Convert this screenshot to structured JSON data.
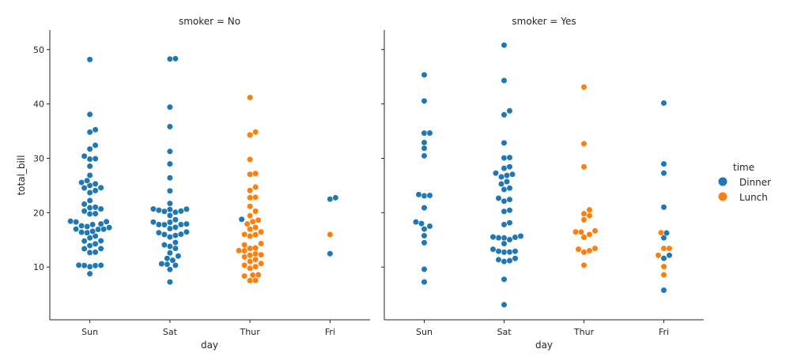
{
  "chart_data": {
    "type": "scatter",
    "subtype": "swarm",
    "ylabel": "total_bill",
    "xlabel": "day",
    "categories": [
      "Sun",
      "Sat",
      "Thur",
      "Fri"
    ],
    "ylim": [
      0.3,
      53.6
    ],
    "yticks": [
      10,
      20,
      30,
      40,
      50
    ],
    "legend": {
      "title": "time",
      "placement": "right",
      "entries": [
        "Dinner",
        "Lunch"
      ]
    },
    "colors": {
      "Dinner": "#1f77b4",
      "Lunch": "#ff7f0e"
    },
    "panels": [
      {
        "title": "smoker = No",
        "points": {
          "Dinner": {
            "Sun": [
              48.17,
              38.07,
              35.26,
              34.81,
              32.4,
              31.71,
              30.4,
              29.93,
              29.85,
              28.55,
              26.88,
              25.89,
              25.56,
              25.29,
              25.0,
              24.59,
              24.55,
              24.06,
              23.68,
              22.23,
              21.58,
              21.01,
              20.9,
              20.69,
              20.29,
              19.82,
              19.77,
              18.43,
              18.35,
              18.29,
              17.92,
              17.81,
              17.59,
              17.46,
              17.26,
              16.99,
              16.97,
              16.93,
              16.58,
              16.4,
              16.31,
              15.69,
              15.36,
              14.83,
              14.78,
              14.26,
              13.94,
              13.37,
              13.39,
              12.66,
              12.74,
              10.33,
              10.34,
              10.29,
              10.27,
              10.07,
              8.77
            ],
            "Sat": [
              48.33,
              48.27,
              39.42,
              35.83,
              31.27,
              28.97,
              26.41,
              24.01,
              21.7,
              20.69,
              20.65,
              20.6,
              20.45,
              20.29,
              20.23,
              20.08,
              19.49,
              18.71,
              18.24,
              18.28,
              17.92,
              17.82,
              17.81,
              17.78,
              17.31,
              17.07,
              16.45,
              16.32,
              16.04,
              15.98,
              15.81,
              15.53,
              14.52,
              14.07,
              13.81,
              13.42,
              12.6,
              12.03,
              11.59,
              11.24,
              10.59,
              10.51,
              10.33,
              9.55,
              7.25
            ],
            "Thur": [
              18.78
            ],
            "Fri": [
              22.75,
              22.49,
              12.46
            ]
          },
          "Lunch": {
            "Sun": [],
            "Sat": [],
            "Thur": [
              41.19,
              34.83,
              34.3,
              29.8,
              27.2,
              27.05,
              24.71,
              24.08,
              22.82,
              22.76,
              21.16,
              20.27,
              19.44,
              18.64,
              18.35,
              17.92,
              17.29,
              16.97,
              16.47,
              16.0,
              15.95,
              15.69,
              14.31,
              14.07,
              13.51,
              13.42,
              13.03,
              13.0,
              12.43,
              12.16,
              12.26,
              11.87,
              11.38,
              11.02,
              10.65,
              10.34,
              10.07,
              9.78,
              8.58,
              8.52,
              8.35,
              7.56,
              7.51
            ],
            "Fri": [
              15.98
            ]
          }
        }
      },
      {
        "title": "smoker = Yes",
        "points": {
          "Dinner": {
            "Sun": [
              45.35,
              40.55,
              34.63,
              34.65,
              32.9,
              31.85,
              30.46,
              23.33,
              23.17,
              23.1,
              20.9,
              18.29,
              18.0,
              17.51,
              16.99,
              15.76,
              14.48,
              9.6,
              7.25
            ],
            "Sat": [
              50.81,
              44.3,
              38.73,
              38.01,
              32.83,
              30.06,
              30.14,
              28.44,
              28.17,
              27.28,
              27.05,
              26.86,
              26.59,
              25.71,
              25.28,
              24.27,
              24.52,
              22.67,
              22.42,
              22.12,
              20.45,
              20.23,
              18.15,
              17.82,
              15.69,
              15.48,
              15.53,
              15.38,
              15.36,
              15.04,
              14.31,
              13.27,
              12.9,
              12.76,
              12.9,
              12.74,
              11.59,
              11.17,
              11.35,
              11.02,
              7.74,
              3.07
            ],
            "Thur": [],
            "Fri": [
              40.17,
              28.97,
              27.28,
              21.01,
              16.27,
              15.38,
              12.16,
              11.61,
              5.75
            ]
          },
          "Lunch": {
            "Sun": [],
            "Sat": [],
            "Thur": [
              43.11,
              32.68,
              28.44,
              20.53,
              19.81,
              19.44,
              18.71,
              16.66,
              16.47,
              16.43,
              15.98,
              15.48,
              13.42,
              13.28,
              13.0,
              12.74,
              10.34
            ],
            "Fri": [
              16.32,
              13.42,
              13.42,
              12.16,
              10.09,
              8.58
            ]
          }
        }
      }
    ]
  }
}
